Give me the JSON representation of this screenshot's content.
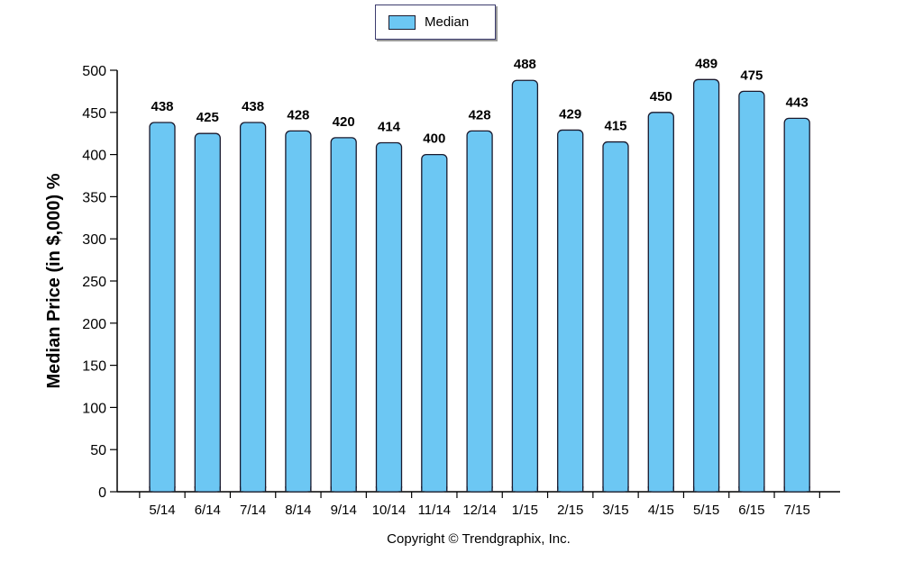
{
  "legend": {
    "label": "Median",
    "color": "#6cc7f3"
  },
  "footer": {
    "copyright": "Copyright © Trendgraphix, Inc."
  },
  "chart_data": {
    "type": "bar",
    "title": "",
    "xlabel": "",
    "ylabel": "Median Price (in $,000) %",
    "ylim": [
      0,
      500
    ],
    "yticks": [
      0,
      50,
      100,
      150,
      200,
      250,
      300,
      350,
      400,
      450,
      500
    ],
    "categories": [
      "5/14",
      "6/14",
      "7/14",
      "8/14",
      "9/14",
      "10/14",
      "11/14",
      "12/14",
      "1/15",
      "2/15",
      "3/15",
      "4/15",
      "5/15",
      "6/15",
      "7/15"
    ],
    "series": [
      {
        "name": "Median",
        "values": [
          438,
          425,
          438,
          428,
          420,
          414,
          400,
          428,
          488,
          429,
          415,
          450,
          489,
          475,
          443
        ]
      }
    ],
    "grid": false,
    "legend_position": "top-center",
    "bar_color": "#6cc7f3",
    "bar_edge_color": "#1a1a2e"
  }
}
